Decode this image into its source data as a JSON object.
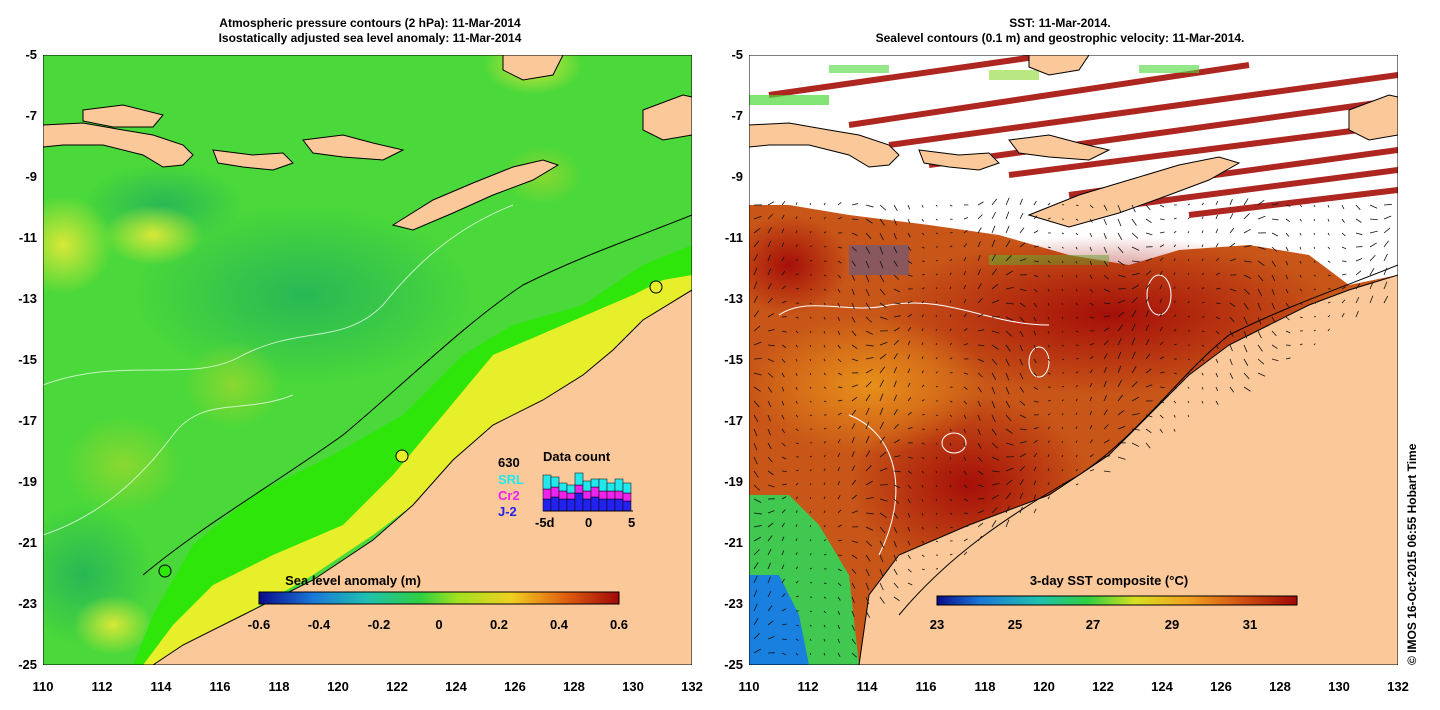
{
  "left_panel": {
    "title_line1": "Atmospheric pressure contours (2 hPa): 11-Mar-2014",
    "title_line2": "Isostatically adjusted sea level anomaly: 11-Mar-2014",
    "colorbar_label": "Sea level anomaly (m)",
    "colorbar_ticks": [
      "-0.6",
      "-0.4",
      "-0.2",
      "0",
      "0.2",
      "0.4",
      "0.6"
    ],
    "data_count": {
      "title": "Data count",
      "total": "630",
      "legend": [
        "SRL",
        "Cr2",
        "J-2"
      ],
      "legend_colors": [
        "#22e8ee",
        "#ee22ee",
        "#2222ee"
      ],
      "axis_ticks": [
        "-5d",
        "0",
        "5"
      ],
      "bars": [
        {
          "srl": 0.35,
          "cr2": 0.25,
          "j2": 0.3
        },
        {
          "srl": 0.25,
          "cr2": 0.25,
          "j2": 0.35
        },
        {
          "srl": 0.2,
          "cr2": 0.2,
          "j2": 0.3
        },
        {
          "srl": 0.2,
          "cr2": 0.15,
          "j2": 0.3
        },
        {
          "srl": 0.3,
          "cr2": 0.2,
          "j2": 0.45
        },
        {
          "srl": 0.25,
          "cr2": 0.2,
          "j2": 0.3
        },
        {
          "srl": 0.2,
          "cr2": 0.25,
          "j2": 0.35
        },
        {
          "srl": 0.3,
          "cr2": 0.2,
          "j2": 0.3
        },
        {
          "srl": 0.2,
          "cr2": 0.2,
          "j2": 0.3
        },
        {
          "srl": 0.3,
          "cr2": 0.2,
          "j2": 0.3
        },
        {
          "srl": 0.25,
          "cr2": 0.2,
          "j2": 0.25
        }
      ]
    }
  },
  "right_panel": {
    "title_line1": "SST: 11-Mar-2014.",
    "title_line2": "Sealevel contours (0.1 m) and geostrophic velocity: 11-Mar-2014.",
    "colorbar_label": "3-day SST composite (°C)",
    "colorbar_ticks": [
      "23",
      "25",
      "27",
      "29",
      "31"
    ]
  },
  "axes": {
    "lat_ticks": [
      "-5",
      "-7",
      "-9",
      "-11",
      "-13",
      "-15",
      "-17",
      "-19",
      "-21",
      "-23",
      "-25"
    ],
    "lon_ticks": [
      "110",
      "112",
      "114",
      "116",
      "118",
      "120",
      "122",
      "124",
      "126",
      "128",
      "130",
      "132"
    ]
  },
  "credit": "© IMOS 16-Oct-2015 06:55 Hobart Time",
  "colors": {
    "land": "#fbc89a",
    "ocean_green": "#4cd83a",
    "ocean_bright": "#2ee60a",
    "sst_dark_red": "#a50f08",
    "sst_orange": "#d2621a"
  }
}
